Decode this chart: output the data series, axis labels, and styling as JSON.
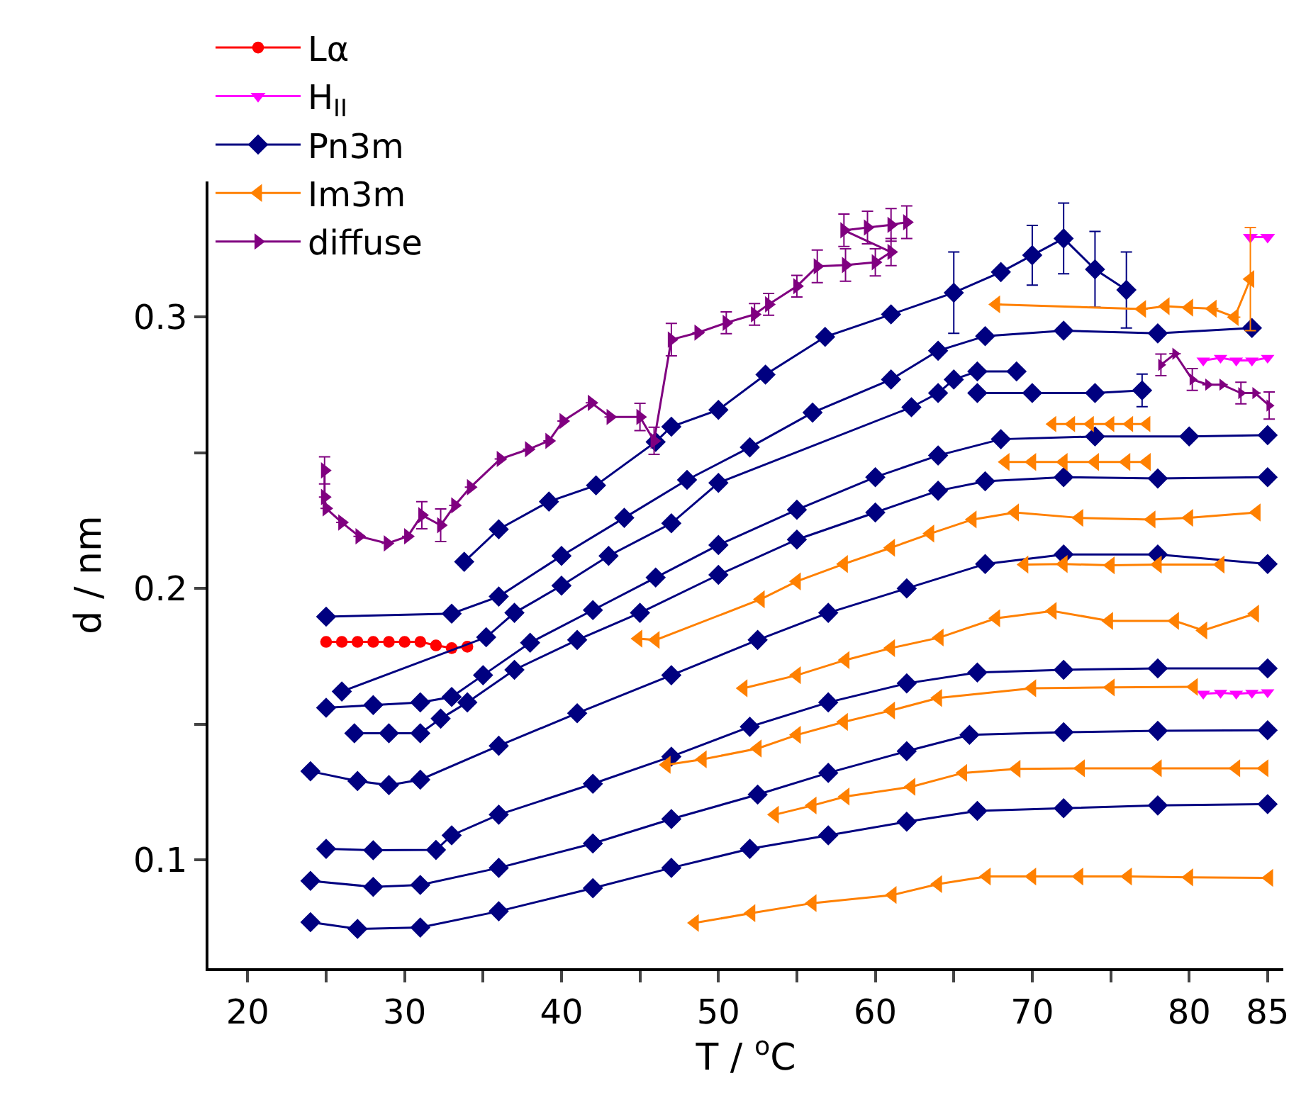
{
  "chart_data": {
    "type": "line",
    "xlabel": "T / $^{o}$C",
    "ylabel": "d / nm",
    "xlim": [
      17.5,
      86
    ],
    "xticks": [
      20,
      {
        "value": 25,
        "label": null
      },
      30,
      {
        "value": 35,
        "label": null
      },
      40,
      {
        "value": 45,
        "label": null
      },
      50,
      {
        "value": 55,
        "label": null
      },
      60,
      {
        "value": 65,
        "label": null
      },
      70,
      {
        "value": 75,
        "label": null
      },
      80,
      85
    ],
    "ylim": [
      0.06,
      0.35
    ],
    "yticks": [
      0.1,
      {
        "value": 0.15,
        "label": null
      },
      0.2,
      {
        "value": 0.25,
        "label": null
      },
      0.3
    ],
    "legend": "top left",
    "line_style": "solid",
    "series": [
      {
        "name": "Lα",
        "color": "#ff0000",
        "marker": "circle",
        "x": [
          25,
          26,
          27,
          28,
          29,
          30,
          31,
          32,
          33,
          34
        ],
        "values": [
          0.1803,
          0.1803,
          0.1803,
          0.1803,
          0.1803,
          0.1803,
          0.1803,
          0.179,
          0.178,
          0.1785
        ]
      },
      {
        "name": "H$_{II}$",
        "color": "#ff00ff",
        "marker": "triangle-down",
        "x": [
          83.9,
          85
        ],
        "values": [
          0.3295,
          0.3295
        ]
      },
      {
        "color": "#ff00ff",
        "marker": "triangle-down",
        "x": [
          80.9,
          82,
          83,
          84,
          85
        ],
        "values": [
          0.284,
          0.285,
          0.284,
          0.284,
          0.285
        ]
      },
      {
        "color": "#ff00ff",
        "marker": "triangle-down",
        "x": [
          80.9,
          82,
          83,
          84,
          85
        ],
        "values": [
          0.1612,
          0.1615,
          0.1612,
          0.1615,
          0.1617
        ]
      },
      {
        "name": "Pn3m",
        "color": "#000080",
        "marker": "diamond",
        "x": [
          24,
          27,
          31,
          36,
          42,
          47,
          52,
          57,
          62,
          66.5,
          72,
          78,
          85
        ],
        "values": [
          0.077,
          0.0745,
          0.075,
          0.081,
          0.0895,
          0.097,
          0.104,
          0.109,
          0.114,
          0.118,
          0.119,
          0.12,
          0.1205
        ]
      },
      {
        "color": "#000080",
        "marker": "diamond",
        "x": [
          24,
          28,
          31,
          36,
          42,
          47,
          52.5,
          57,
          62,
          66,
          72,
          78,
          85
        ],
        "values": [
          0.0922,
          0.09,
          0.0907,
          0.097,
          0.106,
          0.115,
          0.124,
          0.132,
          0.14,
          0.146,
          0.147,
          0.1475,
          0.1477
        ]
      },
      {
        "color": "#000080",
        "marker": "diamond",
        "x": [
          25,
          28,
          32,
          33,
          36,
          42,
          47,
          52,
          57,
          62,
          66.5,
          72,
          78,
          85
        ],
        "values": [
          0.104,
          0.1035,
          0.1036,
          0.109,
          0.1166,
          0.128,
          0.138,
          0.149,
          0.158,
          0.165,
          0.169,
          0.17,
          0.1705,
          0.1705
        ]
      },
      {
        "color": "#000080",
        "marker": "diamond",
        "x": [
          24,
          27,
          29,
          31,
          36,
          41,
          47,
          52.5,
          57,
          62,
          67,
          72,
          78,
          85
        ],
        "values": [
          0.1326,
          0.129,
          0.1275,
          0.1295,
          0.142,
          0.154,
          0.168,
          0.181,
          0.191,
          0.2,
          0.209,
          0.2125,
          0.2125,
          0.209
        ]
      },
      {
        "color": "#000080",
        "marker": "diamond",
        "x": [
          26.8,
          29,
          31,
          32.3,
          34,
          37,
          41,
          45,
          50,
          55,
          60,
          64,
          67,
          72,
          78,
          85
        ],
        "values": [
          0.1466,
          0.1466,
          0.1466,
          0.152,
          0.158,
          0.17,
          0.181,
          0.191,
          0.205,
          0.218,
          0.228,
          0.236,
          0.2395,
          0.241,
          0.2405,
          0.241
        ]
      },
      {
        "color": "#000080",
        "marker": "diamond",
        "x": [
          25,
          28,
          31,
          33,
          35,
          38,
          42,
          46,
          50,
          55,
          60,
          64,
          68,
          74,
          80,
          85
        ],
        "values": [
          0.156,
          0.157,
          0.158,
          0.16,
          0.168,
          0.18,
          0.192,
          0.204,
          0.216,
          0.229,
          0.241,
          0.249,
          0.255,
          0.256,
          0.256,
          0.2565
        ]
      },
      {
        "color": "#000080",
        "marker": "diamond",
        "x": [
          26,
          35.2,
          37,
          40,
          43,
          47,
          50,
          62.3,
          64,
          65,
          66.5,
          69
        ],
        "values": [
          0.162,
          0.182,
          0.191,
          0.201,
          0.212,
          0.224,
          0.2389,
          0.2668,
          0.272,
          0.277,
          0.28,
          0.28
        ]
      },
      {
        "color": "#000080",
        "marker": "diamond",
        "x": [
          66.5,
          70,
          74,
          77
        ],
        "values": [
          0.272,
          0.272,
          0.272,
          0.273
        ],
        "errors": [
          null,
          null,
          null,
          0.006
        ]
      },
      {
        "color": "#000080",
        "marker": "diamond",
        "x": [
          25,
          33,
          36,
          40,
          44,
          48,
          52,
          56,
          61,
          64,
          67,
          72,
          78,
          84
        ],
        "values": [
          0.1896,
          0.1907,
          0.197,
          0.212,
          0.226,
          0.24,
          0.252,
          0.2648,
          0.277,
          0.2876,
          0.293,
          0.295,
          0.294,
          0.296
        ]
      },
      {
        "color": "#000080",
        "marker": "diamond",
        "x": [
          33.8,
          36,
          39.2,
          42.2,
          46,
          47,
          50,
          53,
          56.8,
          61,
          65,
          68,
          70,
          72,
          74,
          76
        ],
        "values": [
          0.2098,
          0.2218,
          0.232,
          0.238,
          0.254,
          0.2596,
          0.2658,
          0.2788,
          0.2927,
          0.301,
          0.309,
          0.3166,
          0.3228,
          0.329,
          0.3176,
          0.31
        ],
        "errors": [
          null,
          null,
          null,
          null,
          null,
          null,
          null,
          null,
          null,
          null,
          0.015,
          null,
          0.011,
          0.013,
          0.014,
          0.014
        ]
      },
      {
        "name": "Im3m",
        "color": "#ff8000",
        "marker": "triangle-left",
        "x": [
          67.7,
          77,
          78.5,
          80,
          81.5,
          82.9,
          83.9
        ],
        "values": [
          0.3047,
          0.303,
          0.304,
          0.3035,
          0.3031,
          0.3,
          0.314
        ],
        "errors": [
          null,
          null,
          null,
          null,
          null,
          null,
          0.019
        ]
      },
      {
        "color": "#ff8000",
        "marker": "triangle-left",
        "x": [
          71.3,
          72.5,
          73.7,
          75,
          76.2,
          77.3
        ],
        "values": [
          0.2606,
          0.2606,
          0.2606,
          0.2606,
          0.2606,
          0.2606
        ]
      },
      {
        "color": "#ff8000",
        "marker": "triangle-left",
        "x": [
          68.3,
          70,
          72,
          74,
          76,
          77.3
        ],
        "values": [
          0.2466,
          0.2466,
          0.2466,
          0.2466,
          0.2466,
          0.2466
        ]
      },
      {
        "color": "#ff8000",
        "marker": "triangle-left",
        "x": [
          44.9,
          46,
          52.7,
          55,
          58,
          61,
          63.5,
          66.2,
          68.9,
          73,
          77.6,
          80,
          84.3
        ],
        "values": [
          0.1815,
          0.181,
          0.196,
          0.2026,
          0.209,
          0.215,
          0.2202,
          0.2254,
          0.228,
          0.226,
          0.2254,
          0.226,
          0.228
        ]
      },
      {
        "color": "#ff8000",
        "marker": "triangle-left",
        "x": [
          69.5,
          72,
          75,
          78,
          82
        ],
        "values": [
          0.2088,
          0.209,
          0.2085,
          0.2088,
          0.2088
        ]
      },
      {
        "color": "#ff8000",
        "marker": "triangle-left",
        "x": [
          51.6,
          55,
          58.1,
          61,
          64.1,
          67.7,
          71.3,
          74.9,
          79.1,
          80.9,
          84.2
        ],
        "values": [
          0.1632,
          0.168,
          0.1736,
          0.178,
          0.1819,
          0.189,
          0.1917,
          0.188,
          0.188,
          0.1845,
          0.1907
        ]
      },
      {
        "color": "#ff8000",
        "marker": "triangle-left",
        "x": [
          46.7,
          49,
          52.5,
          55,
          58,
          61,
          64,
          70,
          75,
          80.3
        ],
        "values": [
          0.135,
          0.137,
          0.141,
          0.146,
          0.1508,
          0.155,
          0.1596,
          0.1632,
          0.1635,
          0.1637
        ]
      },
      {
        "color": "#ff8000",
        "marker": "triangle-left",
        "x": [
          53.6,
          56,
          58.1,
          62.3,
          65.6,
          69,
          73.1,
          78,
          83,
          84.8
        ],
        "values": [
          0.1166,
          0.12,
          0.1233,
          0.1269,
          0.132,
          0.1335,
          0.1337,
          0.1337,
          0.1337,
          0.1337
        ]
      },
      {
        "color": "#ff8000",
        "marker": "triangle-left",
        "x": [
          48.5,
          52.1,
          56,
          61.1,
          64,
          67.1,
          70,
          73,
          76.1,
          80,
          85.1
        ],
        "values": [
          0.0767,
          0.0803,
          0.084,
          0.087,
          0.091,
          0.0938,
          0.0938,
          0.0938,
          0.0938,
          0.0935,
          0.0933
        ]
      },
      {
        "name": "diffuse",
        "color": "#800080",
        "marker": "triangle-right",
        "x": [
          24.9,
          24.9,
          25,
          26,
          27.1,
          28.9,
          30.2,
          31.1,
          32.3,
          33.2,
          34.2,
          36.1,
          37.9,
          39.2,
          40.1,
          41.9,
          43.1,
          45,
          45.9,
          47,
          48.7,
          50.5,
          52.3,
          53.2,
          55,
          56.3,
          58.1,
          60,
          61,
          58,
          59.5,
          61,
          62
        ],
        "values": [
          0.2435,
          0.2337,
          0.2295,
          0.2243,
          0.2192,
          0.2166,
          0.2192,
          0.227,
          0.2233,
          0.2306,
          0.2373,
          0.2477,
          0.2513,
          0.2544,
          0.2617,
          0.2684,
          0.2632,
          0.2632,
          0.2544,
          0.2917,
          0.2943,
          0.2979,
          0.301,
          0.3047,
          0.3114,
          0.3187,
          0.3192,
          0.3202,
          0.324,
          0.332,
          0.333,
          0.334,
          0.335
        ],
        "errors": [
          0.005,
          null,
          null,
          null,
          null,
          null,
          null,
          0.005,
          0.006,
          null,
          null,
          null,
          null,
          null,
          null,
          null,
          null,
          0.005,
          0.005,
          0.006,
          null,
          0.004,
          0.004,
          0.004,
          0.004,
          0.006,
          0.006,
          0.005,
          0.005,
          0.006,
          0.006,
          0.006,
          0.006
        ]
      },
      {
        "color": "#800080",
        "marker": "triangle-right",
        "x": [
          78.2,
          79.1,
          80.2,
          81.2,
          82.1,
          83.3,
          84.2,
          85.1
        ],
        "values": [
          0.2824,
          0.2865,
          0.277,
          0.2751,
          0.2751,
          0.272,
          0.272,
          0.2674
        ],
        "errors": [
          0.004,
          null,
          0.004,
          null,
          null,
          0.004,
          null,
          0.005
        ]
      }
    ]
  }
}
